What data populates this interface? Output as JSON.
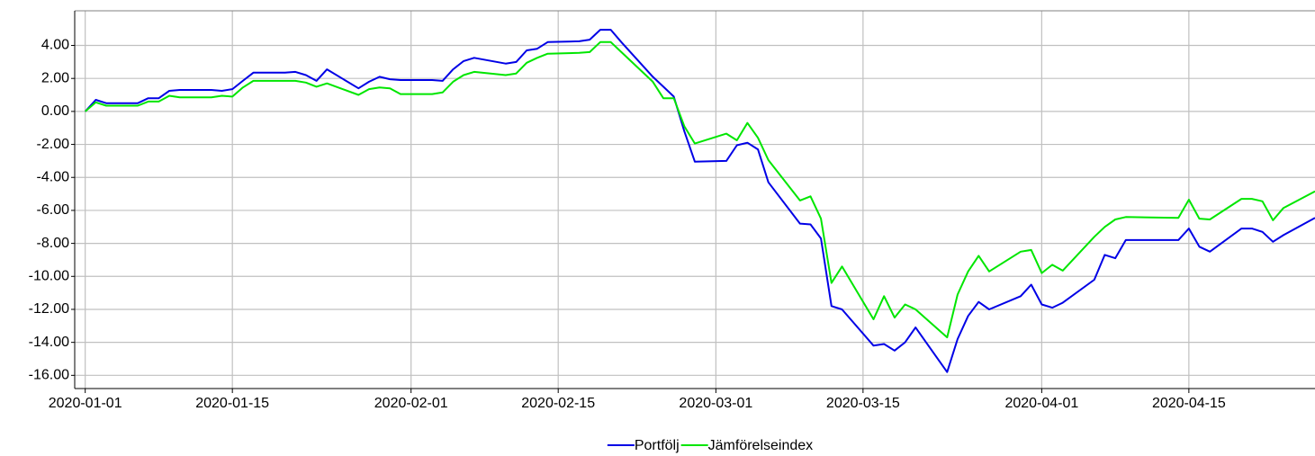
{
  "chart_data": {
    "type": "line",
    "x": [
      "2020-01-01",
      "2020-01-02",
      "2020-01-03",
      "2020-01-06",
      "2020-01-07",
      "2020-01-08",
      "2020-01-09",
      "2020-01-10",
      "2020-01-13",
      "2020-01-14",
      "2020-01-15",
      "2020-01-16",
      "2020-01-17",
      "2020-01-20",
      "2020-01-21",
      "2020-01-22",
      "2020-01-23",
      "2020-01-24",
      "2020-01-27",
      "2020-01-28",
      "2020-01-29",
      "2020-01-30",
      "2020-01-31",
      "2020-02-03",
      "2020-02-04",
      "2020-02-05",
      "2020-02-06",
      "2020-02-07",
      "2020-02-10",
      "2020-02-11",
      "2020-02-12",
      "2020-02-13",
      "2020-02-14",
      "2020-02-17",
      "2020-02-18",
      "2020-02-19",
      "2020-02-20",
      "2020-02-21",
      "2020-02-24",
      "2020-02-25",
      "2020-02-26",
      "2020-02-27",
      "2020-02-28",
      "2020-03-02",
      "2020-03-03",
      "2020-03-04",
      "2020-03-05",
      "2020-03-06",
      "2020-03-09",
      "2020-03-10",
      "2020-03-11",
      "2020-03-12",
      "2020-03-13",
      "2020-03-16",
      "2020-03-17",
      "2020-03-18",
      "2020-03-19",
      "2020-03-20",
      "2020-03-23",
      "2020-03-24",
      "2020-03-25",
      "2020-03-26",
      "2020-03-27",
      "2020-03-30",
      "2020-03-31",
      "2020-04-01",
      "2020-04-02",
      "2020-04-03",
      "2020-04-06",
      "2020-04-07",
      "2020-04-08",
      "2020-04-09",
      "2020-04-14",
      "2020-04-15",
      "2020-04-16",
      "2020-04-17",
      "2020-04-20",
      "2020-04-21",
      "2020-04-22",
      "2020-04-23",
      "2020-04-24",
      "2020-04-27"
    ],
    "series": [
      {
        "name": "Portfölj",
        "color": "#0000e6",
        "values": [
          0,
          0.7,
          0.5,
          0.5,
          0.8,
          0.8,
          1.25,
          1.3,
          1.3,
          1.25,
          1.35,
          1.85,
          2.35,
          2.35,
          2.4,
          2.2,
          1.85,
          2.55,
          1.4,
          1.8,
          2.1,
          1.95,
          1.9,
          1.9,
          1.85,
          2.55,
          3.05,
          3.25,
          2.9,
          3.0,
          3.7,
          3.8,
          4.2,
          4.25,
          4.35,
          4.95,
          4.95,
          4.2,
          2.1,
          1.5,
          0.9,
          -1.2,
          -3.05,
          -3.0,
          -2.05,
          -1.9,
          -2.3,
          -4.3,
          -6.8,
          -6.85,
          -7.7,
          -11.8,
          -12.0,
          -14.2,
          -14.1,
          -14.5,
          -14.0,
          -13.1,
          -15.8,
          -13.8,
          -12.4,
          -11.55,
          -12.0,
          -11.2,
          -10.5,
          -11.7,
          -11.9,
          -11.6,
          -10.2,
          -8.7,
          -8.9,
          -7.8,
          -7.8,
          -7.1,
          -8.2,
          -8.5,
          -7.1,
          -7.1,
          -7.3,
          -7.9,
          -7.5,
          -6.45
        ]
      },
      {
        "name": "Jämförelseindex",
        "color": "#00e600",
        "values": [
          0,
          0.55,
          0.35,
          0.35,
          0.6,
          0.6,
          0.95,
          0.85,
          0.85,
          0.95,
          0.9,
          1.45,
          1.85,
          1.85,
          1.85,
          1.75,
          1.5,
          1.7,
          1.0,
          1.35,
          1.45,
          1.4,
          1.05,
          1.05,
          1.15,
          1.8,
          2.2,
          2.4,
          2.2,
          2.3,
          2.95,
          3.25,
          3.5,
          3.55,
          3.6,
          4.2,
          4.2,
          3.6,
          1.8,
          0.8,
          0.8,
          -0.9,
          -1.95,
          -1.35,
          -1.75,
          -0.7,
          -1.6,
          -2.95,
          -5.4,
          -5.15,
          -6.5,
          -10.4,
          -9.4,
          -12.6,
          -11.2,
          -12.5,
          -11.7,
          -12.0,
          -13.7,
          -11.1,
          -9.7,
          -8.75,
          -9.7,
          -8.5,
          -8.4,
          -9.8,
          -9.3,
          -9.65,
          -7.6,
          -7.0,
          -6.55,
          -6.4,
          -6.45,
          -5.35,
          -6.5,
          -6.55,
          -5.3,
          -5.3,
          -5.45,
          -6.6,
          -5.85,
          -4.85
        ]
      }
    ],
    "xlim": [
      "2019-12-31",
      "2020-04-27"
    ],
    "xticks": [
      "2020-01-01",
      "2020-01-15",
      "2020-02-01",
      "2020-02-15",
      "2020-03-01",
      "2020-03-15",
      "2020-04-01",
      "2020-04-15"
    ],
    "ylim": [
      -16.8,
      6.1
    ],
    "yticks": [
      {
        "value": 4,
        "label": "4.00"
      },
      {
        "value": 2,
        "label": "2.00"
      },
      {
        "value": 0,
        "label": "0.00"
      },
      {
        "value": -2,
        "label": "-2.00"
      },
      {
        "value": -4,
        "label": "-4.00"
      },
      {
        "value": -6,
        "label": "-6.00"
      },
      {
        "value": -8,
        "label": "-8.00"
      },
      {
        "value": -10,
        "label": "-10.00"
      },
      {
        "value": -12,
        "label": "-12.00"
      },
      {
        "value": -14,
        "label": "-14.00"
      },
      {
        "value": -16,
        "label": "-16.00"
      }
    ],
    "grid": true,
    "legend": "bottom"
  }
}
